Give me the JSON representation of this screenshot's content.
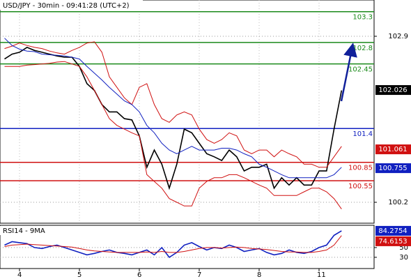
{
  "chart_data": {
    "type": "line",
    "title": "USD/JPY - 30min - 09:41:28 (UTC+2)",
    "ylim": [
      99.86,
      103.49
    ],
    "yticks": [
      102.9,
      100.2
    ],
    "grid": true,
    "series": [
      {
        "color": "#000000",
        "values": [
          102.53,
          102.61,
          102.64,
          102.72,
          102.67,
          102.64,
          102.61,
          102.58,
          102.56,
          102.56,
          102.41,
          102.13,
          102.02,
          101.79,
          101.67,
          101.67,
          101.56,
          101.54,
          101.28,
          100.77,
          101.05,
          100.82,
          100.43,
          100.82,
          101.39,
          101.33,
          101.16,
          100.99,
          100.94,
          100.88,
          101.05,
          100.94,
          100.71,
          100.77,
          100.77,
          100.82,
          100.43,
          100.6,
          100.48,
          100.6,
          100.48,
          100.48,
          100.71,
          100.71,
          101.39,
          102.02
        ]
      },
      {
        "color": "#d01010",
        "values": [
          102.7,
          102.74,
          102.79,
          102.75,
          102.72,
          102.7,
          102.66,
          102.63,
          102.61,
          102.67,
          102.72,
          102.79,
          102.81,
          102.64,
          102.24,
          102.07,
          101.9,
          101.79,
          102.07,
          102.13,
          101.79,
          101.56,
          101.5,
          101.62,
          101.67,
          101.62,
          101.39,
          101.22,
          101.16,
          101.22,
          101.33,
          101.28,
          101.05,
          100.99,
          101.05,
          101.05,
          100.94,
          101.05,
          100.99,
          100.94,
          100.82,
          100.82,
          100.77,
          100.77,
          100.94,
          101.11
        ]
      },
      {
        "color": "#d01010",
        "values": [
          102.41,
          102.41,
          102.41,
          102.43,
          102.44,
          102.45,
          102.46,
          102.48,
          102.49,
          102.45,
          102.41,
          102.24,
          102.02,
          101.79,
          101.56,
          101.45,
          101.39,
          101.33,
          101.28,
          100.65,
          100.54,
          100.43,
          100.26,
          100.2,
          100.14,
          100.14,
          100.43,
          100.54,
          100.6,
          100.6,
          100.65,
          100.65,
          100.6,
          100.54,
          100.48,
          100.43,
          100.31,
          100.31,
          100.31,
          100.31,
          100.37,
          100.43,
          100.43,
          100.37,
          100.26,
          100.09
        ]
      },
      {
        "color": "#1020c0",
        "values": [
          102.87,
          102.75,
          102.69,
          102.66,
          102.65,
          102.61,
          102.6,
          102.59,
          102.58,
          102.56,
          102.53,
          102.41,
          102.3,
          102.19,
          102.07,
          101.96,
          101.85,
          101.79,
          101.67,
          101.45,
          101.33,
          101.16,
          101.05,
          100.99,
          101.05,
          101.11,
          101.05,
          101.05,
          101.05,
          101.08,
          101.08,
          101.05,
          100.99,
          100.94,
          100.82,
          100.77,
          100.71,
          100.65,
          100.6,
          100.6,
          100.6,
          100.6,
          100.6,
          100.6,
          100.65,
          100.77
        ]
      }
    ],
    "levels": [
      {
        "value": 103.3,
        "color": "#1a8a1a"
      },
      {
        "value": 102.8,
        "color": "#1a8a1a"
      },
      {
        "value": 102.45,
        "color": "#1a8a1a"
      },
      {
        "value": 101.4,
        "color": "#1020c0"
      },
      {
        "value": 100.85,
        "color": "#d01010"
      },
      {
        "value": 100.55,
        "color": "#d01010"
      }
    ],
    "markers": [
      {
        "value": 102.026,
        "color": "#000000"
      },
      {
        "value": 101.061,
        "color": "#d01010"
      },
      {
        "value": 100.755,
        "color": "#1020c0"
      }
    ],
    "indicator": {
      "title": "RSI14 - 9MA",
      "categories": [
        null,
        null,
        "4",
        null,
        null,
        null,
        null,
        null,
        null,
        null,
        "5",
        null,
        null,
        null,
        null,
        null,
        null,
        null,
        "6",
        null,
        null,
        null,
        null,
        null,
        null,
        null,
        "7",
        null,
        null,
        null,
        null,
        null,
        null,
        null,
        "8",
        null,
        null,
        null,
        null,
        null,
        null,
        null,
        "11",
        null,
        null,
        null
      ],
      "ylim": [
        7,
        95.6
      ],
      "yticks": [
        50,
        30
      ],
      "series": [
        {
          "color": "#1020c0",
          "values": [
            55,
            62,
            60,
            58,
            50,
            48,
            52,
            55,
            50,
            45,
            40,
            35,
            38,
            42,
            45,
            40,
            38,
            35,
            40,
            45,
            35,
            50,
            30,
            40,
            55,
            60,
            52,
            45,
            50,
            48,
            55,
            50,
            42,
            45,
            48,
            40,
            35,
            38,
            45,
            40,
            38,
            42,
            50,
            55,
            75,
            84.2754
          ]
        },
        {
          "color": "#d01010",
          "values": [
            52,
            55,
            56,
            57,
            56,
            55,
            54,
            53,
            52,
            51,
            48,
            45,
            43,
            42,
            41,
            40,
            40,
            40,
            40,
            41,
            40,
            42,
            40,
            40,
            42,
            45,
            48,
            50,
            50,
            49,
            50,
            51,
            50,
            48,
            47,
            46,
            44,
            42,
            41,
            41,
            40,
            40,
            42,
            45,
            55,
            74.6153
          ]
        }
      ],
      "markers": [
        {
          "value": 84.2754,
          "color": "#1020c0"
        },
        {
          "value": 74.6153,
          "color": "#d01010"
        }
      ]
    }
  }
}
